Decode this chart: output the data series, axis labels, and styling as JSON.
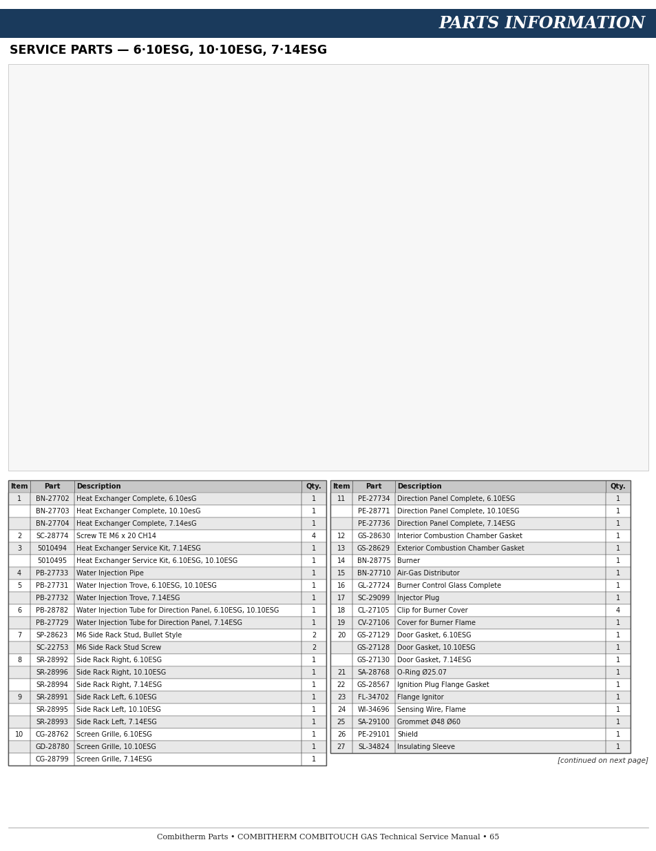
{
  "page_bg": "#ffffff",
  "header_bg": "#1a3a5c",
  "header_text": "PARTS INFORMATION",
  "header_text_color": "#ffffff",
  "subheader_text": "SERVICE PARTS — 6·10ESG, 10·10ESG, 7·14ESG",
  "subheader_color": "#000000",
  "table_header_bg": "#c8c8c8",
  "table_row_alt_bg": "#e8e8e8",
  "table_border_color": "#555555",
  "left_table_headers": [
    "Item",
    "Part",
    "Description",
    "Qty."
  ],
  "right_table_headers": [
    "Item",
    "Part",
    "Description",
    "Qty."
  ],
  "left_table_data": [
    [
      "1",
      "BN-27702",
      "Heat Exchanger Complete, 6.10esG",
      "1"
    ],
    [
      "",
      "BN-27703",
      "Heat Exchanger Complete, 10.10esG",
      "1"
    ],
    [
      "",
      "BN-27704",
      "Heat Exchanger Complete, 7.14esG",
      "1"
    ],
    [
      "2",
      "SC-28774",
      "Screw TE M6 x 20 CH14",
      "4"
    ],
    [
      "3",
      "5010494",
      "Heat Exchanger Service Kit, 7.14ESG",
      "1"
    ],
    [
      "",
      "5010495",
      "Heat Exchanger Service Kit, 6.10ESG, 10.10ESG",
      "1"
    ],
    [
      "4",
      "PB-27733",
      "Water Injection Pipe",
      "1"
    ],
    [
      "5",
      "PB-27731",
      "Water Injection Trove, 6.10ESG, 10.10ESG",
      "1"
    ],
    [
      "",
      "PB-27732",
      "Water Injection Trove, 7.14ESG",
      "1"
    ],
    [
      "6",
      "PB-28782",
      "Water Injection Tube for Direction Panel, 6.10ESG, 10.10ESG",
      "1"
    ],
    [
      "",
      "PB-27729",
      "Water Injection Tube for Direction Panel, 7.14ESG",
      "1"
    ],
    [
      "7",
      "SP-28623",
      "M6 Side Rack Stud, Bullet Style",
      "2"
    ],
    [
      "",
      "SC-22753",
      "M6 Side Rack Stud Screw",
      "2"
    ],
    [
      "8",
      "SR-28992",
      "Side Rack Right, 6.10ESG",
      "1"
    ],
    [
      "",
      "SR-28996",
      "Side Rack Right, 10.10ESG",
      "1"
    ],
    [
      "",
      "SR-28994",
      "Side Rack Right, 7.14ESG",
      "1"
    ],
    [
      "9",
      "SR-28991",
      "Side Rack Left, 6.10ESG",
      "1"
    ],
    [
      "",
      "SR-28995",
      "Side Rack Left, 10.10ESG",
      "1"
    ],
    [
      "",
      "SR-28993",
      "Side Rack Left, 7.14ESG",
      "1"
    ],
    [
      "10",
      "CG-28762",
      "Screen Grille, 6.10ESG",
      "1"
    ],
    [
      "",
      "GD-28780",
      "Screen Grille, 10.10ESG",
      "1"
    ],
    [
      "",
      "CG-28799",
      "Screen Grille, 7.14ESG",
      "1"
    ]
  ],
  "right_table_data": [
    [
      "11",
      "PE-27734",
      "Direction Panel Complete, 6.10ESG",
      "1"
    ],
    [
      "",
      "PE-28771",
      "Direction Panel Complete, 10.10ESG",
      "1"
    ],
    [
      "",
      "PE-27736",
      "Direction Panel Complete, 7.14ESG",
      "1"
    ],
    [
      "12",
      "GS-28630",
      "Interior Combustion Chamber Gasket",
      "1"
    ],
    [
      "13",
      "GS-28629",
      "Exterior Combustion Chamber Gasket",
      "1"
    ],
    [
      "14",
      "BN-28775",
      "Burner",
      "1"
    ],
    [
      "15",
      "BN-27710",
      "Air-Gas Distributor",
      "1"
    ],
    [
      "16",
      "GL-27724",
      "Burner Control Glass Complete",
      "1"
    ],
    [
      "17",
      "SC-29099",
      "Injector Plug",
      "1"
    ],
    [
      "18",
      "CL-27105",
      "Clip for Burner Cover",
      "4"
    ],
    [
      "19",
      "CV-27106",
      "Cover for Burner Flame",
      "1"
    ],
    [
      "20",
      "GS-27129",
      "Door Gasket, 6.10ESG",
      "1"
    ],
    [
      "",
      "GS-27128",
      "Door Gasket, 10.10ESG",
      "1"
    ],
    [
      "",
      "GS-27130",
      "Door Gasket, 7.14ESG",
      "1"
    ],
    [
      "21",
      "SA-28768",
      "O-Ring Ø25.07",
      "1"
    ],
    [
      "22",
      "GS-28567",
      "Ignition Plug Flange Gasket",
      "1"
    ],
    [
      "23",
      "FL-34702",
      "Flange Ignitor",
      "1"
    ],
    [
      "24",
      "WI-34696",
      "Sensing Wire, Flame",
      "1"
    ],
    [
      "25",
      "SA-29100",
      "Grommet Ø48 Ø60",
      "1"
    ],
    [
      "26",
      "PE-29101",
      "Shield",
      "1"
    ],
    [
      "27",
      "SL-34824",
      "Insulating Sleeve",
      "1"
    ]
  ],
  "footer_note": "[continued on next page]",
  "footer_text": "Combitherm Parts • COMBITHERM COMBITOUCH GAS Technical Service Manual • 65"
}
